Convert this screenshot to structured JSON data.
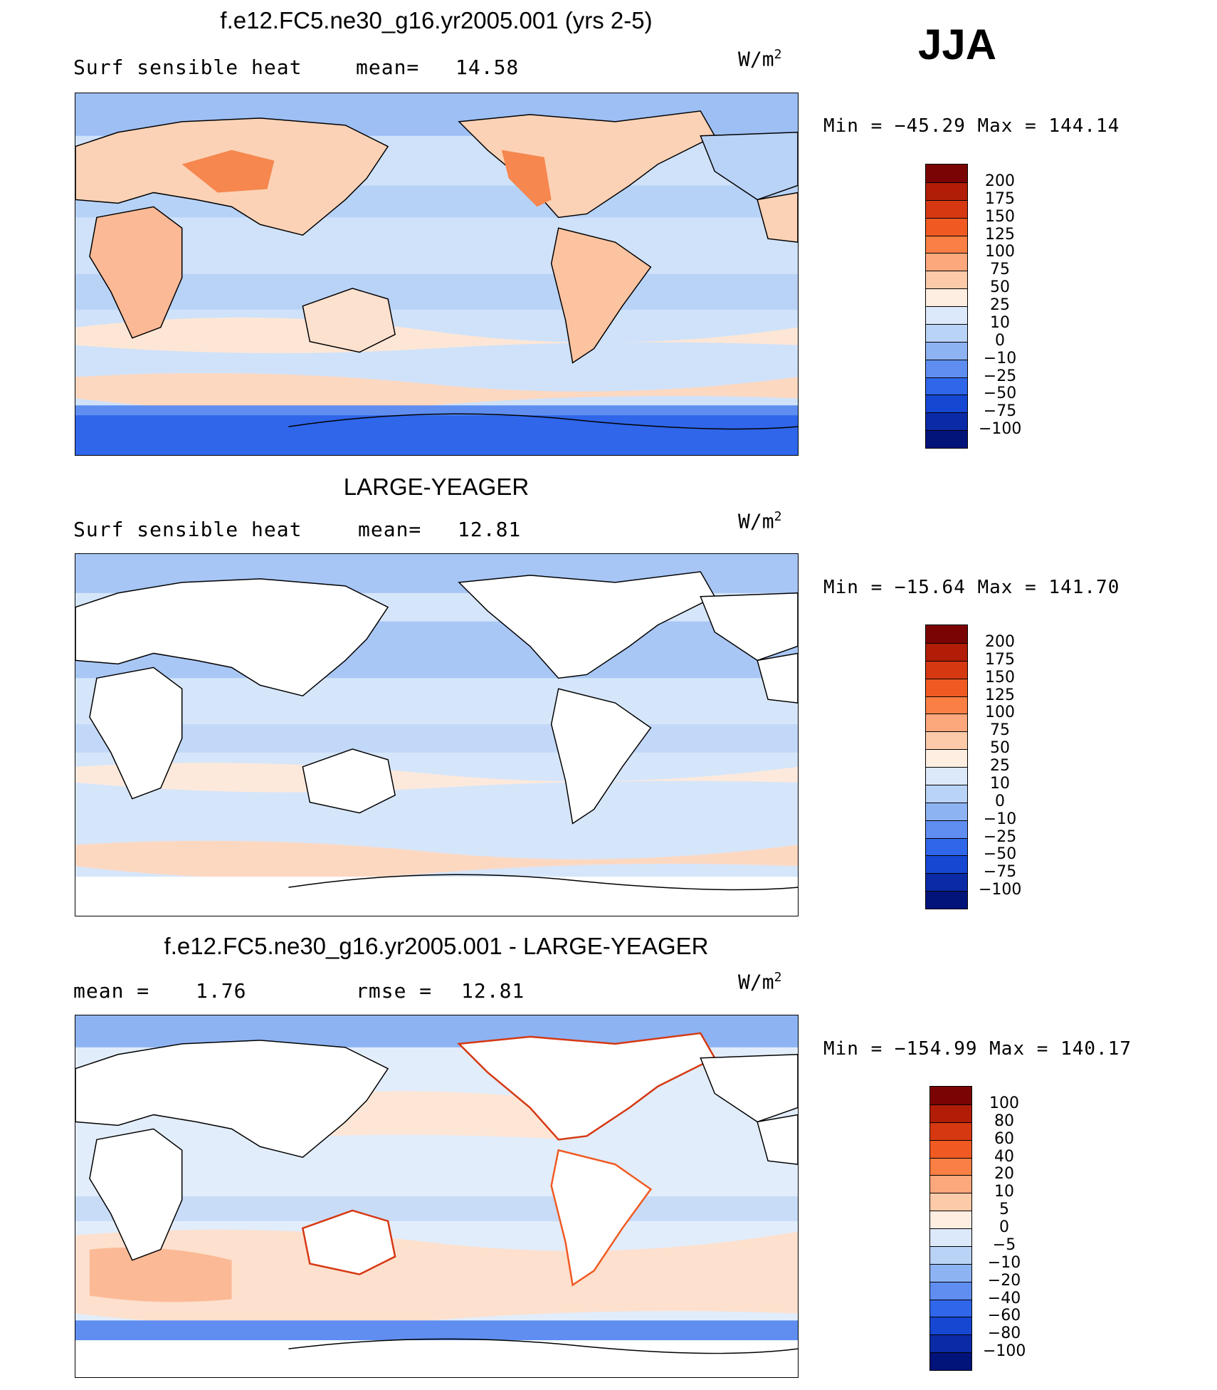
{
  "season": "JJA",
  "panels": [
    {
      "id": "model",
      "title": "f.e12.FC5.ne30_g16.yr2005.001 (yrs 2-5)",
      "left_label": "Surf sensible heat",
      "stat1_label": "mean=",
      "stat1_value": "14.58",
      "stat2_label": "",
      "stat2_value": "",
      "units_base": "W/m",
      "units_exp": "2",
      "min_label": "Min = ",
      "min_value": "−45.29",
      "max_label": "Max = ",
      "max_value": "144.14",
      "colorbar": {
        "labels": [
          "200",
          "175",
          "150",
          "125",
          "100",
          "75",
          "50",
          "25",
          "10",
          "0",
          "−10",
          "−25",
          "−50",
          "−75",
          "−100"
        ],
        "colors": [
          "#7a0403",
          "#b11d06",
          "#d63812",
          "#f05a22",
          "#fa7f44",
          "#fca77c",
          "#fdcaa9",
          "#feeee1",
          "#dce9fa",
          "#b9d3f7",
          "#8db3f3",
          "#5f8ef0",
          "#2f66ea",
          "#1647d2",
          "#0a2aa6",
          "#02137a"
        ]
      }
    },
    {
      "id": "obs",
      "title": "LARGE-YEAGER",
      "left_label": "Surf sensible heat",
      "stat1_label": "mean=",
      "stat1_value": "12.81",
      "stat2_label": "",
      "stat2_value": "",
      "units_base": "W/m",
      "units_exp": "2",
      "min_label": "Min = ",
      "min_value": "−15.64",
      "max_label": "Max = ",
      "max_value": "141.70",
      "colorbar": {
        "labels": [
          "200",
          "175",
          "150",
          "125",
          "100",
          "75",
          "50",
          "25",
          "10",
          "0",
          "−10",
          "−25",
          "−50",
          "−75",
          "−100"
        ],
        "colors": [
          "#7a0403",
          "#b11d06",
          "#d63812",
          "#f05a22",
          "#fa7f44",
          "#fca77c",
          "#fdcaa9",
          "#feeee1",
          "#dce9fa",
          "#b9d3f7",
          "#8db3f3",
          "#5f8ef0",
          "#2f66ea",
          "#1647d2",
          "#0a2aa6",
          "#02137a"
        ]
      }
    },
    {
      "id": "diff",
      "title": "f.e12.FC5.ne30_g16.yr2005.001 - LARGE-YEAGER",
      "left_label": "mean =",
      "stat1_label": "",
      "stat1_value": "1.76",
      "stat2_label": "rmse =",
      "stat2_value": "12.81",
      "units_base": "W/m",
      "units_exp": "2",
      "min_label": "Min = ",
      "min_value": "−154.99",
      "max_label": "Max = ",
      "max_value": "140.17",
      "colorbar": {
        "labels": [
          "100",
          "80",
          "60",
          "40",
          "20",
          "10",
          "5",
          "0",
          "−5",
          "−10",
          "−20",
          "−40",
          "−60",
          "−80",
          "−100"
        ],
        "colors": [
          "#7a0403",
          "#b11d06",
          "#d63812",
          "#f05a22",
          "#fa7f44",
          "#fca77c",
          "#fdcaa9",
          "#feeee1",
          "#dce9fa",
          "#b9d3f7",
          "#8db3f3",
          "#5f8ef0",
          "#2f66ea",
          "#1647d2",
          "#0a2aa6",
          "#02137a"
        ]
      }
    }
  ]
}
